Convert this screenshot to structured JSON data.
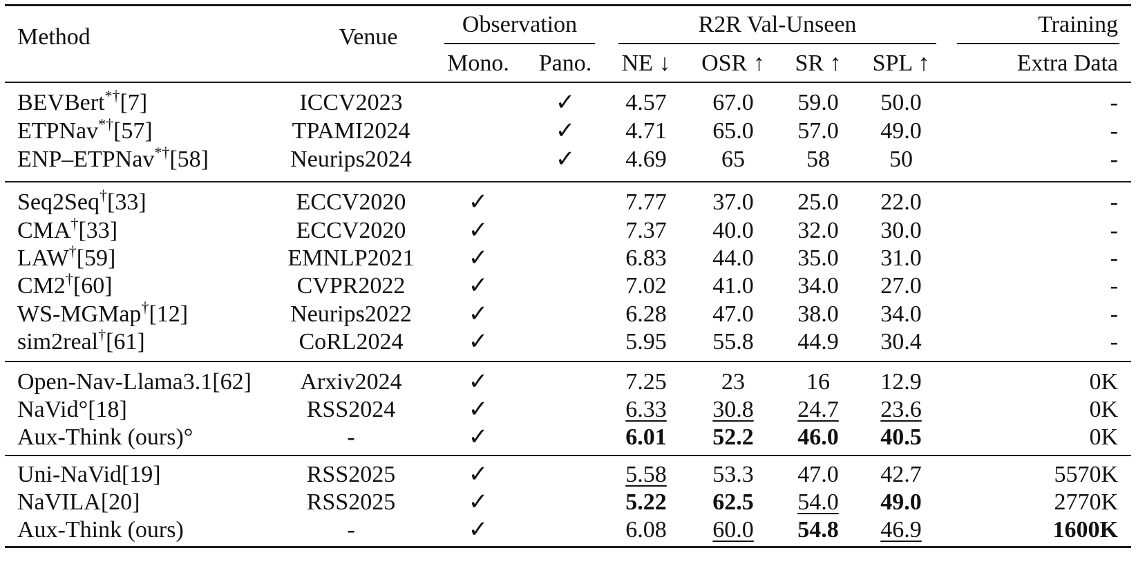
{
  "header": {
    "method": "Method",
    "venue": "Venue",
    "observation": "Observation",
    "mono": "Mono.",
    "pano": "Pano.",
    "r2r": "R2R Val-Unseen",
    "ne": "NE ↓",
    "osr": "OSR ↑",
    "sr": "SR ↑",
    "spl": "SPL ↑",
    "training": "Training",
    "extra_data": "Extra Data"
  },
  "groups": [
    {
      "rows": [
        {
          "name": "BEVBert",
          "sup": "*†",
          "ref": "[7]",
          "venue": "ICCV2023",
          "mono": "",
          "pano": "✓",
          "ne": "4.57",
          "osr": "67.0",
          "sr": "59.0",
          "spl": "50.0",
          "extra": "-"
        },
        {
          "name": "ETPNav",
          "sup": "*†",
          "ref": "[57]",
          "venue": "TPAMI2024",
          "mono": "",
          "pano": "✓",
          "ne": "4.71",
          "osr": "65.0",
          "sr": "57.0",
          "spl": "49.0",
          "extra": "-"
        },
        {
          "name": "ENP–ETPNav",
          "sup": "*†",
          "ref": "[58]",
          "venue": "Neurips2024",
          "mono": "",
          "pano": "✓",
          "ne": "4.69",
          "osr": "65",
          "sr": "58",
          "spl": "50",
          "extra": "-"
        }
      ]
    },
    {
      "rows": [
        {
          "name": "Seq2Seq",
          "sup": "†",
          "ref": "[33]",
          "venue": "ECCV2020",
          "mono": "✓",
          "pano": "",
          "ne": "7.77",
          "osr": "37.0",
          "sr": "25.0",
          "spl": "22.0",
          "extra": "-"
        },
        {
          "name": "CMA",
          "sup": "†",
          "ref": "[33]",
          "venue": "ECCV2020",
          "mono": "✓",
          "pano": "",
          "ne": "7.37",
          "osr": "40.0",
          "sr": "32.0",
          "spl": "30.0",
          "extra": "-"
        },
        {
          "name": "LAW",
          "sup": "†",
          "ref": "[59]",
          "venue": "EMNLP2021",
          "mono": "✓",
          "pano": "",
          "ne": "6.83",
          "osr": "44.0",
          "sr": "35.0",
          "spl": "31.0",
          "extra": "-"
        },
        {
          "name": "CM2",
          "sup": "†",
          "ref": "[60]",
          "venue": "CVPR2022",
          "mono": "✓",
          "pano": "",
          "ne": "7.02",
          "osr": "41.0",
          "sr": "34.0",
          "spl": "27.0",
          "extra": "-"
        },
        {
          "name": "WS-MGMap",
          "sup": "†",
          "ref": "[12]",
          "venue": "Neurips2022",
          "mono": "✓",
          "pano": "",
          "ne": "6.28",
          "osr": "47.0",
          "sr": "38.0",
          "spl": "34.0",
          "extra": "-"
        },
        {
          "name": "sim2real",
          "sup": "†",
          "ref": "[61]",
          "venue": "CoRL2024",
          "mono": "✓",
          "pano": "",
          "ne": "5.95",
          "osr": "55.8",
          "sr": "44.9",
          "spl": "30.4",
          "extra": "-"
        }
      ]
    },
    {
      "rows": [
        {
          "name": "Open-Nav-Llama3.1",
          "sup": "",
          "ref": "[62]",
          "venue": "Arxiv2024",
          "mono": "✓",
          "pano": "",
          "ne": "7.25",
          "osr": "23",
          "sr": "16",
          "spl": "12.9",
          "extra": "0K"
        },
        {
          "name": "NaVid°",
          "sup": "",
          "ref": "[18]",
          "venue": "RSS2024",
          "mono": "✓",
          "pano": "",
          "ne": "6.33",
          "osr": "30.8",
          "sr": "24.7",
          "spl": "23.6",
          "extra": "0K"
        },
        {
          "name": "Aux-Think (ours)°",
          "sup": "",
          "ref": "",
          "venue": "-",
          "mono": "✓",
          "pano": "",
          "ne": "6.01",
          "osr": "52.2",
          "sr": "46.0",
          "spl": "40.5",
          "extra": "0K"
        }
      ]
    },
    {
      "rows": [
        {
          "name": "Uni-NaVid",
          "sup": "",
          "ref": "[19]",
          "venue": "RSS2025",
          "mono": "✓",
          "pano": "",
          "ne": "5.58",
          "osr": "53.3",
          "sr": "47.0",
          "spl": "42.7",
          "extra": "5570K"
        },
        {
          "name": "NaVILA",
          "sup": "",
          "ref": "[20]",
          "venue": "RSS2025",
          "mono": "✓",
          "pano": "",
          "ne": "5.22",
          "osr": "62.5",
          "sr": "54.0",
          "spl": "49.0",
          "extra": "2770K"
        },
        {
          "name": "Aux-Think (ours)",
          "sup": "",
          "ref": "",
          "venue": "-",
          "mono": "✓",
          "pano": "",
          "ne": "6.08",
          "osr": "60.0",
          "sr": "54.8",
          "spl": "46.9",
          "extra": "1600K"
        }
      ]
    }
  ],
  "emphasis": {
    "bold": [
      "2.2.ne",
      "2.2.osr",
      "2.2.sr",
      "2.2.spl",
      "3.1.ne",
      "3.1.osr",
      "3.2.sr",
      "3.1.spl",
      "3.2.extra"
    ],
    "underline": [
      "2.1.ne",
      "2.1.osr",
      "2.1.sr",
      "2.1.spl",
      "3.0.ne",
      "3.2.osr",
      "3.1.sr",
      "3.2.spl"
    ]
  }
}
